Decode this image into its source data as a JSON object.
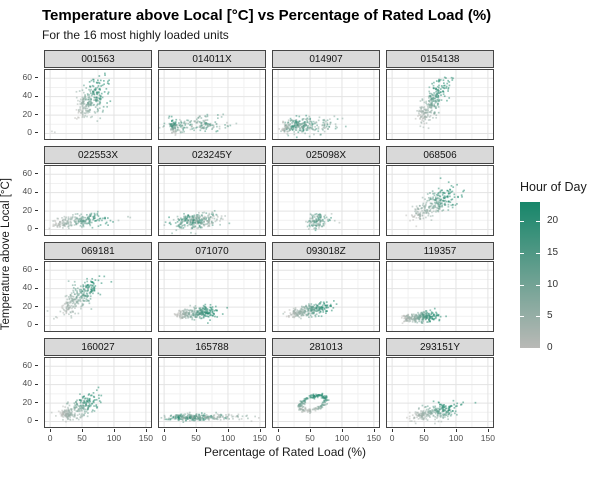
{
  "title": "Temperature above Local [°C] vs Percentage of Rated Load (%)",
  "subtitle": "For the 16 most highly loaded units",
  "axes": {
    "x_label": "Percentage of Rated Load (%)",
    "y_label": "Temperature above Local [°C]",
    "x_ticks": [
      0,
      50,
      100,
      150
    ],
    "y_ticks": [
      0,
      20,
      40,
      60
    ],
    "x_domain": [
      -8,
      158
    ],
    "y_domain": [
      -6,
      69
    ]
  },
  "legend": {
    "title": "Hour of Day",
    "ticks": [
      0,
      5,
      10,
      15,
      20
    ],
    "domain": [
      0,
      23
    ],
    "low_color": "#b9b9b6",
    "high_color": "#17866a"
  },
  "colors": {
    "strip_bg": "#d9d9d9",
    "strip_border": "#454545",
    "panel_border": "#454545",
    "panel_bg": "#ffffff",
    "grid_major": "#e3e3e3",
    "grid_minor": "#f1f1f1",
    "tick_text": "#4d4d4d",
    "text": "#1a1a1a",
    "point_low": "#b9b9b6",
    "point_high": "#17866a"
  },
  "chart_data": {
    "type": "scatter",
    "facet_layout": [
      4,
      4
    ],
    "color_variable": "Hour of Day",
    "x_variable": "Percentage of Rated Load (%)",
    "y_variable": "Temperature above Local [°C]",
    "grid": true,
    "legend_position": "right",
    "facets": [
      {
        "label": "001563",
        "clusters": [
          {
            "n": 50,
            "cx": 49,
            "cy": 27,
            "sx": 4.5,
            "sy": 8,
            "rho": 0.35,
            "hours": [
              0,
              7
            ],
            "axis": "xy"
          },
          {
            "n": 200,
            "cx": 68,
            "cy": 38,
            "sx": 11,
            "sy": 11,
            "rho": 0.35,
            "hours": [
              5,
              23
            ],
            "axis": "xy"
          },
          {
            "n": 2,
            "cx": 5,
            "cy": 2,
            "sx": 2.5,
            "sy": 1.5,
            "rho": 0,
            "hours": [
              0,
              4
            ],
            "axis": "rand"
          }
        ]
      },
      {
        "label": "014011X",
        "clusters": [
          {
            "n": 70,
            "cx": 14,
            "cy": 7,
            "sx": 2.5,
            "sy": 4,
            "rho": 0,
            "hours": [
              0,
              23
            ],
            "axis": "y"
          },
          {
            "n": 150,
            "cx": 52,
            "cy": 9,
            "sx": 24,
            "sy": 3.5,
            "rho": 0.1,
            "hours": [
              2,
              20
            ],
            "axis": "rand"
          },
          {
            "n": 12,
            "cx": 60,
            "cy": 18,
            "sx": 20,
            "sy": 2.5,
            "rho": 0,
            "hours": [
              3,
              16
            ],
            "axis": "rand"
          }
        ]
      },
      {
        "label": "014907",
        "clusters": [
          {
            "n": 55,
            "cx": 14,
            "cy": 6,
            "sx": 6,
            "sy": 3,
            "rho": 0.1,
            "hours": [
              0,
              8
            ],
            "axis": "x"
          },
          {
            "n": 110,
            "cx": 31,
            "cy": 8,
            "sx": 9,
            "sy": 4,
            "rho": 0,
            "hours": [
              8,
              23
            ],
            "axis": "rand"
          },
          {
            "n": 110,
            "cx": 58,
            "cy": 9,
            "sx": 20,
            "sy": 4.5,
            "rho": 0.1,
            "hours": [
              2,
              18
            ],
            "axis": "rand"
          }
        ]
      },
      {
        "label": "0154138",
        "clusters": [
          {
            "n": 45,
            "cx": 50,
            "cy": 21,
            "sx": 5,
            "sy": 5,
            "rho": 0.3,
            "hours": [
              0,
              7
            ],
            "axis": "xy"
          },
          {
            "n": 210,
            "cx": 66,
            "cy": 36,
            "sx": 12,
            "sy": 12,
            "rho": 0.7,
            "hours": [
              4,
              23
            ],
            "axis": "xy"
          }
        ]
      },
      {
        "label": "022553X",
        "clusters": [
          {
            "n": 60,
            "cx": 20,
            "cy": 6,
            "sx": 8,
            "sy": 2.8,
            "rho": 0.2,
            "hours": [
              0,
              7
            ],
            "axis": "x"
          },
          {
            "n": 150,
            "cx": 55,
            "cy": 10,
            "sx": 19,
            "sy": 3.8,
            "rho": 0.35,
            "hours": [
              4,
              22
            ],
            "axis": "x"
          },
          {
            "n": 3,
            "cx": 116,
            "cy": 12,
            "sx": 9,
            "sy": 2,
            "rho": 0,
            "hours": [
              3,
              10
            ],
            "axis": "rand"
          }
        ]
      },
      {
        "label": "023245Y",
        "clusters": [
          {
            "n": 220,
            "cx": 44,
            "cy": 9,
            "sx": 17,
            "sy": 4.2,
            "rho": 0.15,
            "hours": [
              4,
              23
            ],
            "axis": "rand"
          },
          {
            "n": 60,
            "cx": 72,
            "cy": 10,
            "sx": 14,
            "sy": 4,
            "rho": 0.1,
            "hours": [
              1,
              10
            ],
            "axis": "rand"
          }
        ]
      },
      {
        "label": "025098X",
        "clusters": [
          {
            "n": 115,
            "cx": 62,
            "cy": 9,
            "sx": 8,
            "sy": 4.3,
            "rho": 0.2,
            "hours": [
              3,
              22
            ],
            "axis": "rand"
          },
          {
            "n": 2,
            "cx": 93,
            "cy": 10,
            "sx": 3,
            "sy": 2,
            "rho": 0,
            "hours": [
              2,
              7
            ],
            "axis": "rand"
          }
        ]
      },
      {
        "label": "068506",
        "clusters": [
          {
            "n": 55,
            "cx": 43,
            "cy": 18,
            "sx": 6.5,
            "sy": 5,
            "rho": 0.4,
            "hours": [
              0,
              7
            ],
            "axis": "xy"
          },
          {
            "n": 200,
            "cx": 73,
            "cy": 30,
            "sx": 15,
            "sy": 8.5,
            "rho": 0.6,
            "hours": [
              5,
              23
            ],
            "axis": "xy"
          }
        ]
      },
      {
        "label": "069181",
        "clusters": [
          {
            "n": 60,
            "cx": 30,
            "cy": 24,
            "sx": 6.5,
            "sy": 6.5,
            "rho": 0.4,
            "hours": [
              0,
              7
            ],
            "axis": "xy"
          },
          {
            "n": 190,
            "cx": 52,
            "cy": 35,
            "sx": 14,
            "sy": 10,
            "rho": 0.6,
            "hours": [
              5,
              23
            ],
            "axis": "xy"
          },
          {
            "n": 2,
            "cx": 9,
            "cy": 8,
            "sx": 3,
            "sy": 2,
            "rho": 0,
            "hours": [
              1,
              5
            ],
            "axis": "rand"
          }
        ]
      },
      {
        "label": "071070",
        "clusters": [
          {
            "n": 75,
            "cx": 30,
            "cy": 12,
            "sx": 6.5,
            "sy": 2.8,
            "rho": 0.2,
            "hours": [
              0,
              7
            ],
            "axis": "x"
          },
          {
            "n": 180,
            "cx": 57,
            "cy": 14,
            "sx": 12,
            "sy": 3.4,
            "rho": 0.25,
            "hours": [
              7,
              23
            ],
            "axis": "x"
          }
        ]
      },
      {
        "label": "093018Z",
        "clusters": [
          {
            "n": 65,
            "cx": 27,
            "cy": 13,
            "sx": 6,
            "sy": 2.8,
            "rho": 0.2,
            "hours": [
              0,
              6
            ],
            "axis": "x"
          },
          {
            "n": 180,
            "cx": 56,
            "cy": 17,
            "sx": 13,
            "sy": 3.8,
            "rho": 0.3,
            "hours": [
              6,
              23
            ],
            "axis": "x"
          }
        ]
      },
      {
        "label": "119357",
        "clusters": [
          {
            "n": 65,
            "cx": 26,
            "cy": 8,
            "sx": 6,
            "sy": 2.4,
            "rho": 0.2,
            "hours": [
              0,
              6
            ],
            "axis": "x"
          },
          {
            "n": 170,
            "cx": 50,
            "cy": 9.5,
            "sx": 11,
            "sy": 2.8,
            "rho": 0.15,
            "hours": [
              6,
              23
            ],
            "axis": "x"
          }
        ]
      },
      {
        "label": "160027",
        "clusters": [
          {
            "n": 90,
            "cx": 26,
            "cy": 8,
            "sx": 5,
            "sy": 2.8,
            "rho": 0.1,
            "hours": [
              0,
              6
            ],
            "axis": "x"
          },
          {
            "n": 170,
            "cx": 52,
            "cy": 17,
            "sx": 13,
            "sy": 7.5,
            "rho": 0.55,
            "hours": [
              5,
              23
            ],
            "axis": "xy"
          },
          {
            "n": 2,
            "cx": 6,
            "cy": 8,
            "sx": 2,
            "sy": 1.5,
            "rho": 0,
            "hours": [
              1,
              5
            ],
            "axis": "rand"
          }
        ]
      },
      {
        "label": "165788",
        "clusters": [
          {
            "n": 230,
            "cx": 42,
            "cy": 4.5,
            "sx": 20,
            "sy": 1.9,
            "rho": 0.05,
            "hours": [
              4,
              23
            ],
            "axis": "rand"
          },
          {
            "n": 70,
            "cx": 85,
            "cy": 5,
            "sx": 24,
            "sy": 2,
            "rho": 0,
            "hours": [
              0,
              9
            ],
            "axis": "rand"
          }
        ]
      },
      {
        "label": "281013",
        "clusters": [
          {
            "shape": "ring",
            "n": 210,
            "cx": 55,
            "cy": 20,
            "rx": 20,
            "ry": 7.5,
            "tilt": 0.18,
            "hours": [
              0,
              23
            ]
          }
        ]
      },
      {
        "label": "293151Y",
        "clusters": [
          {
            "n": 55,
            "cx": 45,
            "cy": 6,
            "sx": 8,
            "sy": 2.8,
            "rho": 0.2,
            "hours": [
              0,
              7
            ],
            "axis": "x"
          },
          {
            "n": 190,
            "cx": 73,
            "cy": 11,
            "sx": 16,
            "sy": 4.8,
            "rho": 0.4,
            "hours": [
              4,
              23
            ],
            "axis": "xy"
          }
        ]
      }
    ]
  }
}
